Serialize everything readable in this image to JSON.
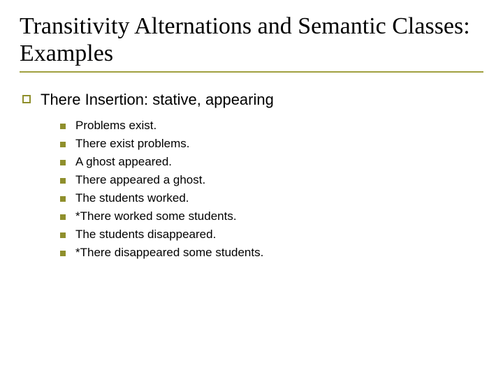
{
  "title": "Transitivity Alternations and Semantic Classes: Examples",
  "colors": {
    "accent": "#8f8f2c",
    "text": "#000000",
    "background": "#ffffff",
    "underline": "#a0a040"
  },
  "typography": {
    "title_font": "Times New Roman",
    "title_fontsize": 34,
    "body_font": "Verdana",
    "level1_fontsize": 22,
    "level2_fontsize": 17
  },
  "level1": {
    "text": "There Insertion: stative, appearing",
    "bullet_style": "hollow-square",
    "bullet_color": "#8f8f2c"
  },
  "level2": {
    "bullet_style": "filled-square",
    "bullet_color": "#8f8f2c",
    "items": [
      "Problems exist.",
      "There exist problems.",
      "A ghost appeared.",
      "There appeared a ghost.",
      "The students worked.",
      "*There worked some students.",
      "The students disappeared.",
      "*There disappeared some students."
    ]
  }
}
